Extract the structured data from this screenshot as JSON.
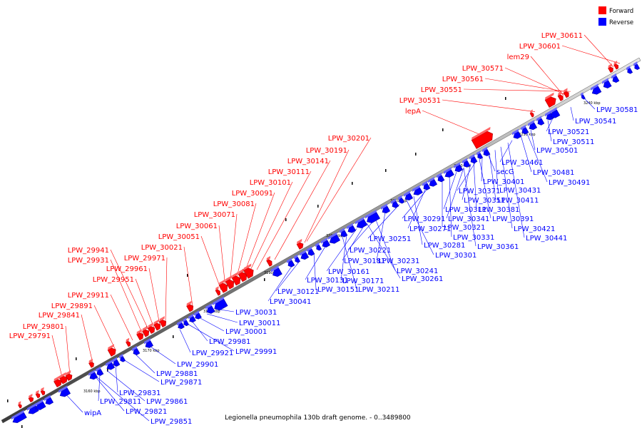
{
  "caption": "Legionella pneumophila 130b draft genome. - 0..3489800",
  "legend": [
    {
      "label": "Forward",
      "color": "#ff0000"
    },
    {
      "label": "Reverse",
      "color": "#0000ff"
    }
  ],
  "axis_ticks": [
    "3160 kbp",
    "3170 kbp",
    "3180 kbp",
    "3190 kbp",
    "3200 kbp",
    "3210 kbp",
    "3220 kbp",
    "3230 kbp",
    "3240 kbp"
  ],
  "forward_labels": [
    "LPW_30611",
    "LPW_30601",
    "lem29",
    "LPW_30571",
    "LPW_30561",
    "LPW_30551",
    "LPW_30531",
    "lepA",
    "LPW_30201",
    "LPW_30191",
    "LPW_30141",
    "LPW_30111",
    "LPW_30101",
    "LPW_30091",
    "LPW_30081",
    "LPW_30071",
    "LPW_30061",
    "LPW_30051",
    "LPW_30021",
    "LPW_29971",
    "LPW_29961",
    "LPW_29951",
    "LPW_29941",
    "LPW_29931",
    "LPW_29911",
    "LPW_29891",
    "LPW_29841",
    "LPW_29801",
    "LPW_29791"
  ],
  "reverse_labels": [
    "LPW_30581",
    "LPW_30541",
    "LPW_30521",
    "LPW_30511",
    "LPW_30501",
    "LPW_30461",
    "secG",
    "LPW_30481",
    "LPW_30491",
    "LPW_30401",
    "LPW_30431",
    "LPW_30371",
    "LPW_30411",
    "LPW_30351",
    "LPW_30381",
    "LPW_30311",
    "LPW_30341",
    "LPW_30391",
    "LPW_30291",
    "LPW_30321",
    "LPW_30271",
    "LPW_30421",
    "LPW_30331",
    "LPW_30441",
    "LPW_30251",
    "LPW_30361",
    "LPW_30281",
    "LPW_30221",
    "LPW_30301",
    "LPW_30231",
    "LPW_30181",
    "LPW_30241",
    "LPW_30161",
    "LPW_30131",
    "LPW_30171",
    "LPW_30261",
    "LPW_30151",
    "LPW_30211",
    "LPW_30121",
    "LPW_30041",
    "LPW_30031",
    "LPW_30011",
    "LPW_30001",
    "LPW_29981",
    "LPW_29991",
    "LPW_29921",
    "LPW_29901",
    "LPW_29881",
    "LPW_29871",
    "LPW_29831",
    "LPW_29861",
    "LPW_29811",
    "LPW_29821",
    "wipA",
    "LPW_29851"
  ]
}
